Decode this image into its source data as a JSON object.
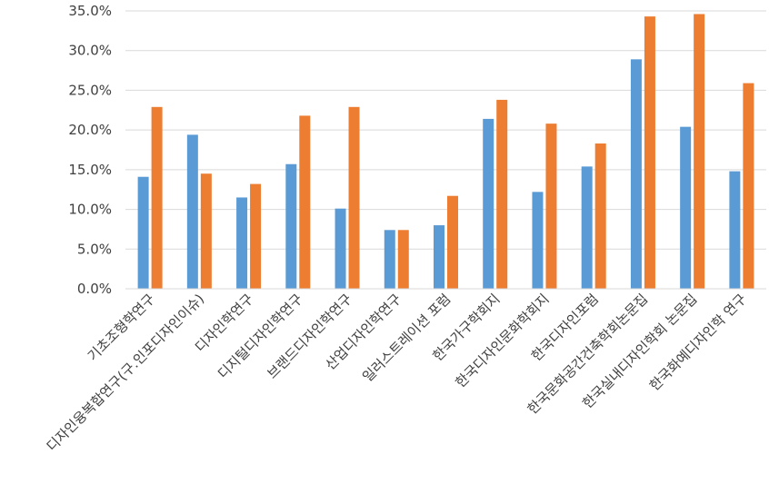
{
  "chart_data": {
    "type": "bar",
    "title": "",
    "xlabel": "",
    "ylabel": "",
    "ylim": [
      0,
      35
    ],
    "y_ticks": [
      "0.0%",
      "5.0%",
      "10.0%",
      "15.0%",
      "20.0%",
      "25.0%",
      "30.0%",
      "35.0%"
    ],
    "y_tick_values": [
      0,
      5,
      10,
      15,
      20,
      25,
      30,
      35
    ],
    "grid": "horizontal",
    "legend": "none",
    "categories": [
      "기초조형학연구",
      "디자인융복합연구(구.인포디자인이슈)",
      "디자인학연구",
      "디지털디자인학연구",
      "브랜드디자인학연구",
      "산업디자인학연구",
      "일러스트레이션 포럼",
      "한국가구학회지",
      "한국디자인문화학회지",
      "한국디자인포럼",
      "한국문화공간건축학회논문집",
      "한국실내디자인학회 논문집",
      "한국화예디자인학 연구"
    ],
    "series": [
      {
        "color": "#5B9BD5",
        "values": [
          14.1,
          19.4,
          11.5,
          15.7,
          10.1,
          7.4,
          8.0,
          21.4,
          12.2,
          15.4,
          28.9,
          20.4,
          14.8
        ]
      },
      {
        "color": "#ED7D31",
        "values": [
          22.9,
          14.5,
          13.2,
          21.8,
          22.9,
          7.4,
          11.7,
          23.8,
          20.8,
          18.3,
          34.3,
          34.6,
          25.9
        ]
      }
    ]
  }
}
